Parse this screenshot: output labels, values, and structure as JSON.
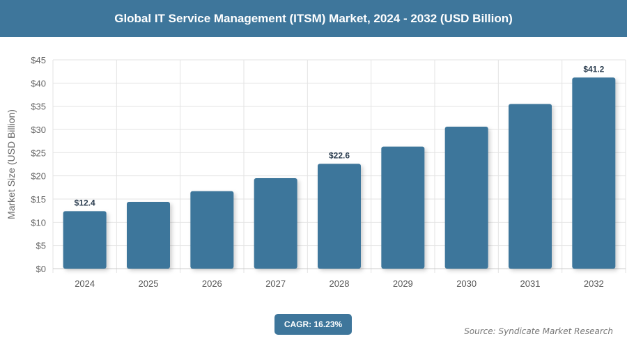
{
  "header": {
    "title": "Global IT Service Management (ITSM) Market, 2024 - 2032 (USD Billion)"
  },
  "chart_data": {
    "type": "bar",
    "title": "Global IT Service Management (ITSM) Market, 2024 - 2032 (USD Billion)",
    "categories": [
      "2024",
      "2025",
      "2026",
      "2027",
      "2028",
      "2029",
      "2030",
      "2031",
      "2032"
    ],
    "values": [
      12.4,
      14.4,
      16.7,
      19.5,
      22.6,
      26.3,
      30.6,
      35.5,
      41.2
    ],
    "data_labels": {
      "0": "$12.4",
      "4": "$22.6",
      "8": "$41.2"
    },
    "ylabel": "Market Size (USD Billion)",
    "xlabel": "",
    "ylim": [
      0,
      45
    ],
    "yticks": [
      "$0",
      "$5",
      "$10",
      "$15",
      "$20",
      "$25",
      "$30",
      "$35",
      "$40",
      "$45"
    ],
    "grid": true,
    "bar_color": "#3e769b"
  },
  "footer": {
    "cagr": "CAGR: 16.23%",
    "source": "Source: Syndicate Market Research"
  }
}
